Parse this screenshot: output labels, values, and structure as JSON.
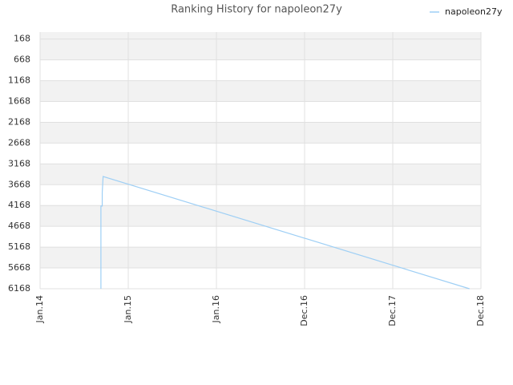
{
  "chart_data": {
    "type": "line",
    "title": "Ranking History for napoleon27y",
    "x": [
      0.69,
      0.69,
      0.705,
      0.705,
      0.715,
      4.87
    ],
    "series": [
      {
        "name": "napoleon27y",
        "color": "#9ecff5",
        "values": [
          6168,
          4180,
          4180,
          3850,
          3470,
          6168
        ]
      }
    ],
    "xlim": [
      0,
      5
    ],
    "xticks": [
      {
        "value": 0,
        "label": "Jan.14"
      },
      {
        "value": 1,
        "label": "Jan.15"
      },
      {
        "value": 2,
        "label": "Jan.16"
      },
      {
        "value": 3,
        "label": "Dec.16"
      },
      {
        "value": 4,
        "label": "Dec.17"
      },
      {
        "value": 5,
        "label": "Dec.18"
      }
    ],
    "ylim": [
      0,
      6168
    ],
    "y_inverted": true,
    "yticks": [
      168,
      668,
      1168,
      1668,
      2168,
      2668,
      3168,
      3668,
      4168,
      4668,
      5168,
      5668,
      6168
    ],
    "grid": true,
    "legend": "top-right"
  }
}
